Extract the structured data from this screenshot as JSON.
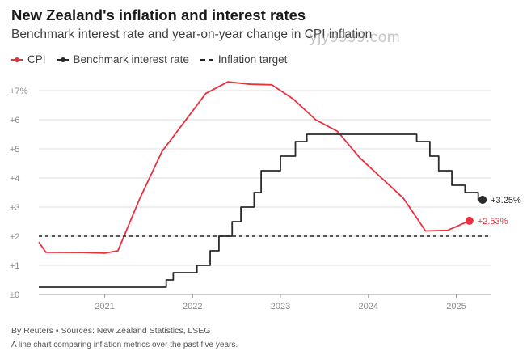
{
  "title": "New Zealand's inflation and interest rates",
  "subtitle": "Benchmark interest rate and year-on-year change in CPI inflation",
  "watermark": "yjy9999.com",
  "legend": {
    "cpi": "CPI",
    "rate": "Benchmark interest rate",
    "target": "Inflation target"
  },
  "colors": {
    "cpi": "#e8303f",
    "rate": "#2b2b2b",
    "target": "#222222",
    "grid": "#dddddd",
    "axis_text": "#8a8a8a"
  },
  "chart_data": {
    "type": "line",
    "title": "New Zealand's inflation and interest rates",
    "ylim": [
      0,
      7.5
    ],
    "yticks": [
      0,
      1,
      2,
      3,
      4,
      5,
      6,
      7
    ],
    "ytick_labels": [
      "±0",
      "+1",
      "+2",
      "+3",
      "+4",
      "+5",
      "+6",
      "+7%"
    ],
    "xlim": [
      2020.25,
      2025.4
    ],
    "xticks": [
      2021,
      2022,
      2023,
      2024,
      2025
    ],
    "xtick_labels": [
      "2021",
      "2022",
      "2023",
      "2024",
      "2025"
    ],
    "grid": true,
    "legend_position": "top-left",
    "series": [
      {
        "name": "CPI",
        "key": "cpi",
        "x": [
          2020.25,
          2020.33,
          2020.75,
          2021.0,
          2021.15,
          2021.4,
          2021.65,
          2021.9,
          2022.15,
          2022.4,
          2022.65,
          2022.9,
          2023.15,
          2023.4,
          2023.65,
          2023.9,
          2024.15,
          2024.4,
          2024.65,
          2024.9,
          2025.15
        ],
        "y": [
          1.8,
          1.45,
          1.44,
          1.42,
          1.5,
          3.3,
          4.9,
          5.9,
          6.9,
          7.3,
          7.22,
          7.2,
          6.7,
          6.0,
          5.6,
          4.7,
          4.0,
          3.3,
          2.18,
          2.2,
          2.53
        ],
        "end_label": "+2.53%"
      },
      {
        "name": "Benchmark interest rate",
        "key": "rate",
        "step": true,
        "x": [
          2020.25,
          2021.7,
          2021.78,
          2021.88,
          2022.05,
          2022.2,
          2022.3,
          2022.45,
          2022.55,
          2022.7,
          2022.78,
          2023.0,
          2023.17,
          2023.3,
          2024.55,
          2024.7,
          2024.8,
          2024.95,
          2025.1,
          2025.25,
          2025.3
        ],
        "y": [
          0.25,
          0.5,
          0.75,
          0.75,
          1.0,
          1.5,
          2.0,
          2.5,
          3.0,
          3.5,
          4.25,
          4.75,
          5.25,
          5.5,
          5.25,
          4.75,
          4.25,
          3.75,
          3.5,
          3.25,
          3.25
        ],
        "end_label": "+3.25%"
      },
      {
        "name": "Inflation target",
        "key": "target",
        "dashed": true,
        "x": [
          2020.25,
          2025.4
        ],
        "y": [
          2,
          2
        ]
      }
    ]
  },
  "footer": {
    "source": "By Reuters • Sources: New Zealand Statistics, LSEG",
    "description": "A line chart comparing inflation metrics over the past five years."
  }
}
